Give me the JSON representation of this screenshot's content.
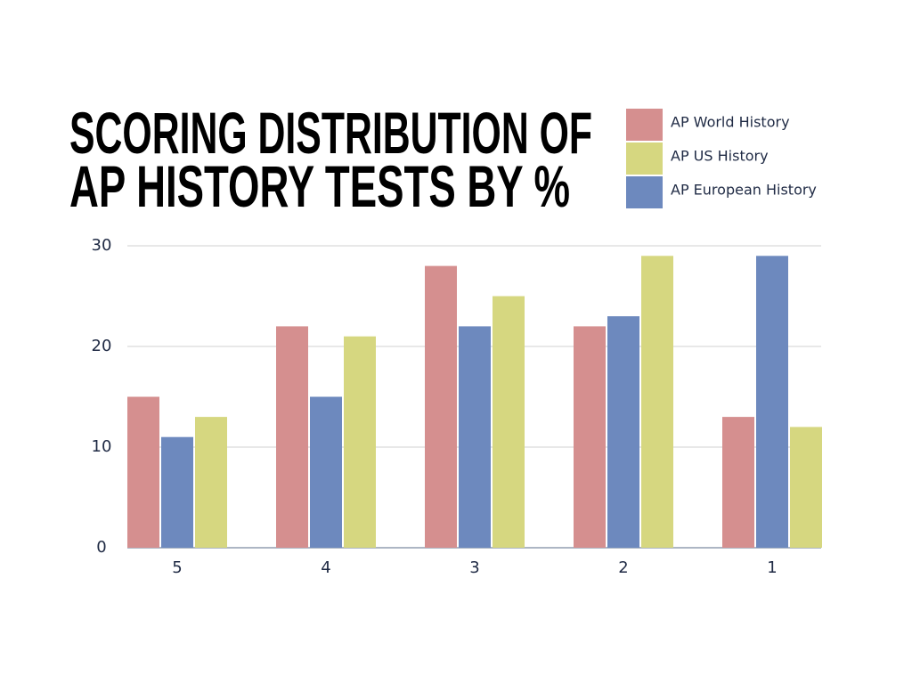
{
  "chart_data": {
    "type": "bar",
    "title": [
      "SCORING DISTRIBUTION OF",
      "AP HISTORY TESTS BY %"
    ],
    "categories": [
      "5",
      "4",
      "3",
      "2",
      "1"
    ],
    "series": [
      {
        "name": "AP World History",
        "color": "#d58f8f",
        "values": [
          15,
          22,
          28,
          22,
          13
        ]
      },
      {
        "name": "AP US History",
        "color": "#d6d780",
        "values": [
          13,
          21,
          25,
          29,
          12
        ]
      },
      {
        "name": "AP European History",
        "color": "#6d89be",
        "values": [
          11,
          15,
          22,
          23,
          29
        ]
      }
    ],
    "ylim": [
      0,
      30
    ],
    "yticks": [
      0,
      10,
      20,
      30
    ],
    "grid": true
  }
}
